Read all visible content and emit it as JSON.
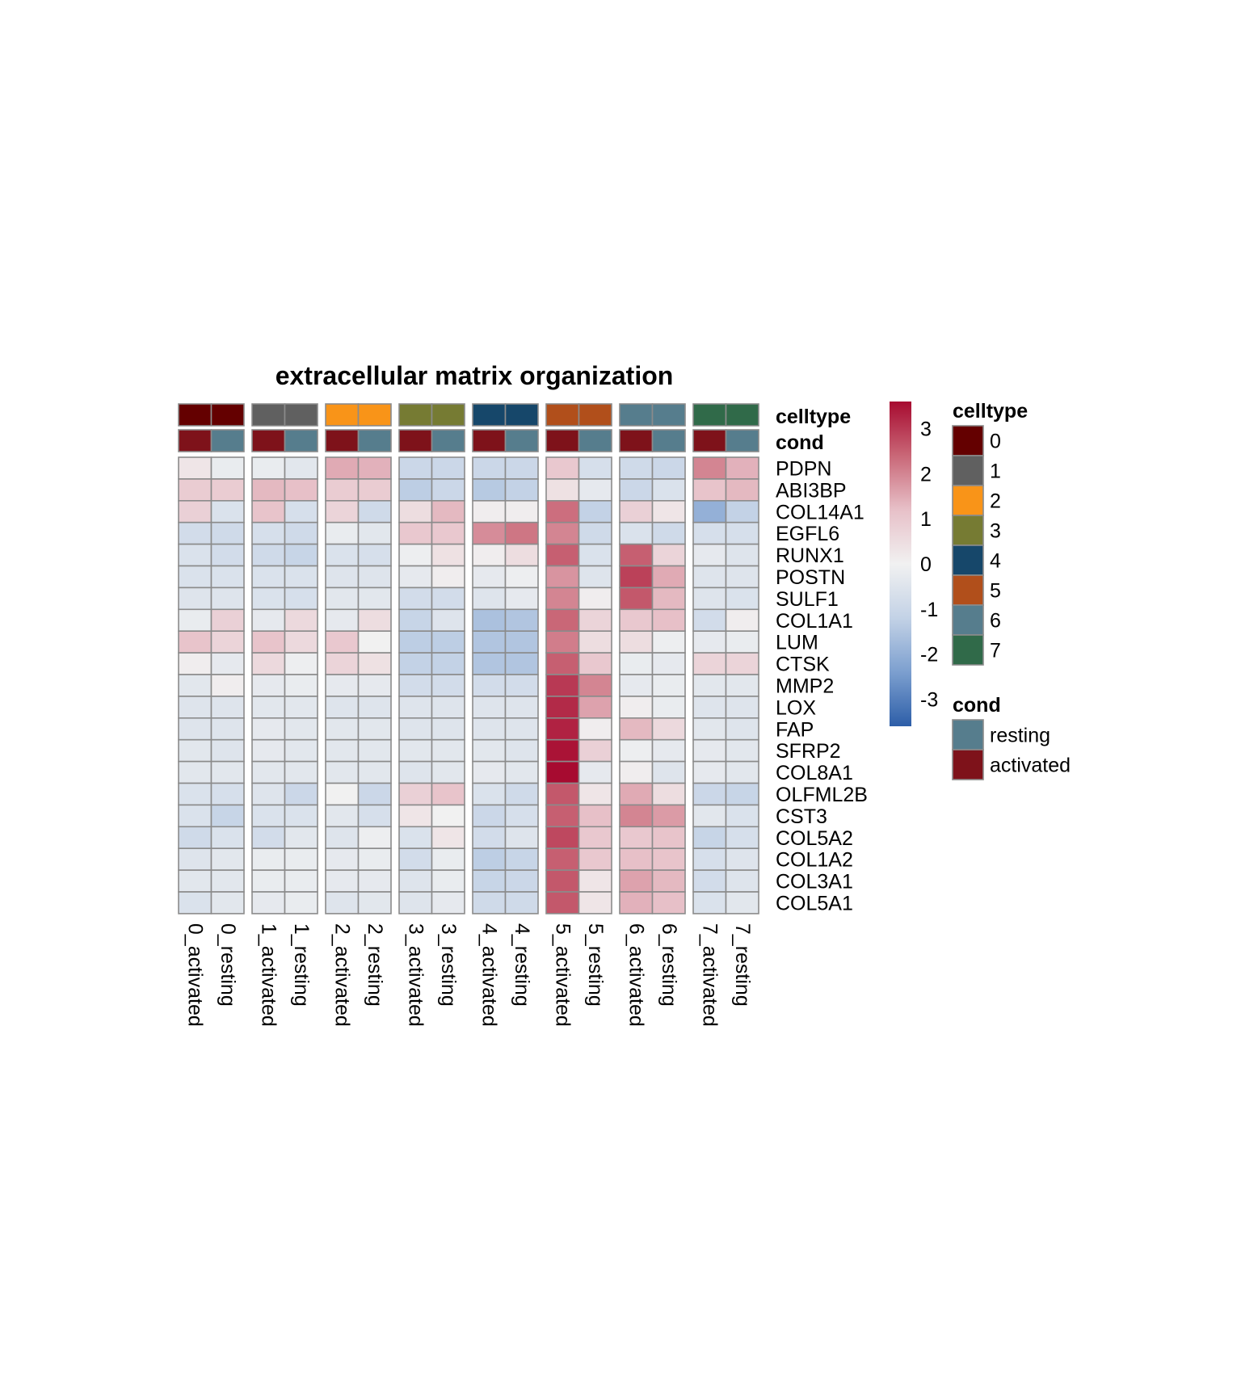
{
  "chart_data": {
    "type": "heatmap",
    "title": "extracellular matrix organization",
    "columns": [
      "0_activated",
      "0_resting",
      "1_activated",
      "1_resting",
      "2_activated",
      "2_resting",
      "3_activated",
      "3_resting",
      "4_activated",
      "4_resting",
      "5_activated",
      "5_resting",
      "6_activated",
      "6_resting",
      "7_activated",
      "7_resting"
    ],
    "rows": [
      "PDPN",
      "ABI3BP",
      "COL14A1",
      "EGFL6",
      "RUNX1",
      "POSTN",
      "SULF1",
      "COL1A1",
      "LUM",
      "CTSK",
      "MMP2",
      "LOX",
      "FAP",
      "SFRP2",
      "COL8A1",
      "OLFML2B",
      "CST3",
      "COL5A2",
      "COL1A2",
      "COL3A1",
      "COL5A1"
    ],
    "values": [
      [
        0.3,
        -0.2,
        -0.2,
        -0.4,
        1.5,
        1.4,
        -1.0,
        -1.0,
        -1.0,
        -1.0,
        1.0,
        -0.7,
        -0.9,
        -1.0,
        2.0,
        1.4
      ],
      [
        0.9,
        0.9,
        1.3,
        1.2,
        0.9,
        0.9,
        -1.3,
        -1.0,
        -1.4,
        -1.2,
        0.4,
        -0.3,
        -1.0,
        -0.6,
        1.1,
        1.3
      ],
      [
        0.8,
        -0.6,
        1.1,
        -0.7,
        0.7,
        -0.9,
        0.5,
        1.3,
        0.1,
        0.1,
        2.3,
        -1.2,
        0.8,
        0.3,
        -2.0,
        -1.2
      ],
      [
        -0.8,
        -0.9,
        -0.7,
        -0.9,
        -0.2,
        -0.4,
        1.0,
        1.0,
        1.9,
        2.2,
        2.0,
        -0.9,
        -0.6,
        -0.9,
        -0.7,
        -0.7
      ],
      [
        -0.6,
        -0.8,
        -0.9,
        -1.1,
        -0.6,
        -0.7,
        -0.1,
        0.4,
        0.1,
        0.5,
        2.5,
        -0.6,
        2.5,
        0.7,
        -0.3,
        -0.5
      ],
      [
        -0.6,
        -0.6,
        -0.6,
        -0.6,
        -0.5,
        -0.5,
        -0.3,
        0.1,
        -0.3,
        -0.1,
        1.8,
        -0.5,
        2.9,
        1.5,
        -0.5,
        -0.5
      ],
      [
        -0.5,
        -0.5,
        -0.6,
        -0.7,
        -0.4,
        -0.4,
        -0.8,
        -0.8,
        -0.5,
        -0.3,
        2.0,
        0.1,
        2.6,
        1.3,
        -0.5,
        -0.6
      ],
      [
        -0.2,
        0.8,
        -0.3,
        0.6,
        -0.3,
        0.5,
        -1.1,
        -0.5,
        -1.6,
        -1.5,
        2.4,
        0.7,
        1.0,
        1.2,
        -0.8,
        0.1
      ],
      [
        1.1,
        0.7,
        1.1,
        0.6,
        1.0,
        0.0,
        -1.3,
        -1.3,
        -1.5,
        -1.5,
        2.1,
        0.5,
        0.5,
        -0.1,
        -0.3,
        -0.2
      ],
      [
        0.1,
        -0.3,
        0.6,
        -0.1,
        0.7,
        0.4,
        -1.2,
        -1.2,
        -1.5,
        -1.5,
        2.5,
        1.0,
        -0.2,
        -0.3,
        0.7,
        0.7
      ],
      [
        -0.4,
        0.1,
        -0.3,
        -0.2,
        -0.3,
        -0.3,
        -0.8,
        -0.8,
        -0.8,
        -0.8,
        3.0,
        2.0,
        -0.3,
        -0.2,
        -0.4,
        -0.4
      ],
      [
        -0.5,
        -0.5,
        -0.4,
        -0.4,
        -0.5,
        -0.5,
        -0.5,
        -0.5,
        -0.5,
        -0.5,
        3.2,
        1.6,
        0.1,
        -0.2,
        -0.5,
        -0.5
      ],
      [
        -0.5,
        -0.5,
        -0.3,
        -0.4,
        -0.4,
        -0.4,
        -0.5,
        -0.5,
        -0.5,
        -0.5,
        3.3,
        0.1,
        1.3,
        0.6,
        -0.4,
        -0.5
      ],
      [
        -0.4,
        -0.5,
        -0.3,
        -0.4,
        -0.4,
        -0.4,
        -0.4,
        -0.4,
        -0.4,
        -0.5,
        3.5,
        0.8,
        -0.1,
        -0.3,
        -0.3,
        -0.4
      ],
      [
        -0.4,
        -0.4,
        -0.4,
        -0.4,
        -0.4,
        -0.4,
        -0.5,
        -0.4,
        -0.3,
        -0.4,
        3.6,
        -0.3,
        0.1,
        -0.5,
        -0.3,
        -0.4
      ],
      [
        -0.6,
        -0.7,
        -0.5,
        -1.0,
        0.0,
        -1.0,
        0.8,
        1.1,
        -0.6,
        -0.9,
        2.6,
        0.3,
        1.5,
        0.5,
        -1.0,
        -1.1
      ],
      [
        -0.6,
        -1.1,
        -0.6,
        -0.6,
        -0.4,
        -0.7,
        0.3,
        0.0,
        -1.0,
        -0.7,
        2.5,
        1.2,
        2.0,
        1.7,
        -0.4,
        -0.6
      ],
      [
        -0.9,
        -0.6,
        -0.8,
        -0.4,
        -0.5,
        -0.1,
        -0.6,
        0.3,
        -0.8,
        -0.5,
        2.8,
        1.0,
        1.0,
        1.1,
        -1.1,
        -0.7
      ],
      [
        -0.5,
        -0.4,
        -0.2,
        -0.2,
        -0.3,
        -0.2,
        -0.8,
        -0.2,
        -1.3,
        -1.1,
        2.5,
        1.0,
        1.2,
        1.1,
        -0.7,
        -0.5
      ],
      [
        -0.4,
        -0.4,
        -0.2,
        -0.2,
        -0.3,
        -0.3,
        -0.5,
        -0.2,
        -1.1,
        -1.0,
        2.6,
        0.3,
        1.6,
        1.3,
        -0.8,
        -0.5
      ],
      [
        -0.6,
        -0.4,
        -0.3,
        -0.2,
        -0.5,
        -0.4,
        -0.5,
        -0.3,
        -0.9,
        -0.9,
        2.6,
        0.3,
        1.4,
        1.2,
        -0.6,
        -0.4
      ]
    ],
    "color_scale": {
      "min": -3.6,
      "max": 3.6,
      "colors": [
        "#2d5ea8",
        "#7c9fcf",
        "#c3d2e6",
        "#f1f1f1",
        "#e7c0c8",
        "#c96777",
        "#a70b30"
      ],
      "ticks": [
        3,
        2,
        1,
        0,
        -1,
        -2,
        -3
      ]
    },
    "annotations": {
      "celltype": {
        "label": "celltype",
        "per_column": [
          "0",
          "0",
          "1",
          "1",
          "2",
          "2",
          "3",
          "3",
          "4",
          "4",
          "5",
          "5",
          "6",
          "6",
          "7",
          "7"
        ],
        "palette": {
          "0": "#640000",
          "1": "#606060",
          "2": "#f99418",
          "3": "#767b33",
          "4": "#16476a",
          "5": "#b14f1b",
          "6": "#567d8d",
          "7": "#306a49"
        }
      },
      "cond": {
        "label": "cond",
        "per_column": [
          "activated",
          "resting",
          "activated",
          "resting",
          "activated",
          "resting",
          "activated",
          "resting",
          "activated",
          "resting",
          "activated",
          "resting",
          "activated",
          "resting",
          "activated",
          "resting"
        ],
        "palette": {
          "resting": "#567d8d",
          "activated": "#7e121a"
        }
      }
    },
    "legend": {
      "celltype": {
        "title": "celltype",
        "items": [
          "0",
          "1",
          "2",
          "3",
          "4",
          "5",
          "6",
          "7"
        ]
      },
      "cond": {
        "title": "cond",
        "items": [
          "resting",
          "activated"
        ]
      }
    },
    "column_split": "celltype",
    "grid": true,
    "legend_position": "right"
  }
}
